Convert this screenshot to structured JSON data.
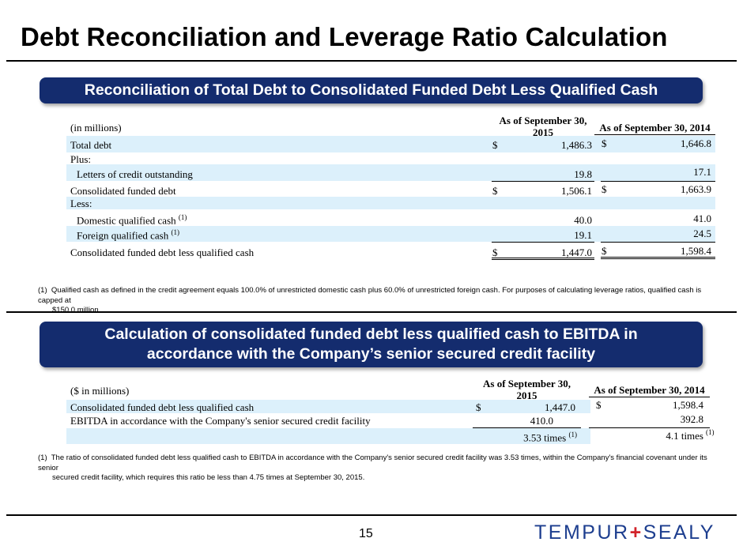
{
  "page": {
    "title": "Debt Reconciliation and Leverage Ratio Calculation",
    "page_number": "15",
    "logo_text": [
      "TEMPUR",
      "SEALY"
    ],
    "logo_plus": "+"
  },
  "section1": {
    "banner": "Reconciliation of Total Debt to Consolidated Funded Debt Less Qualified Cash",
    "units": "(in millions)",
    "col_2015": "As of September 30, 2015",
    "col_2015_l1": "As of September 30,",
    "col_2015_l2": "2015",
    "col_2014": "As of September 30, 2014",
    "rows": [
      {
        "label": "Total debt",
        "cur15": "$",
        "v15": "1,486.3",
        "cur14": "$",
        "v14": "1,646.8"
      },
      {
        "label": "Plus:"
      },
      {
        "label": "Letters of credit outstanding",
        "v15": "19.8",
        "v14": "17.1"
      },
      {
        "label": "Consolidated funded debt",
        "cur15": "$",
        "v15": "1,506.1",
        "cur14": "$",
        "v14": "1,663.9"
      },
      {
        "label": "Less:"
      },
      {
        "label": "Domestic qualified cash",
        "note": "(1)",
        "v15": "40.0",
        "v14": "41.0"
      },
      {
        "label": "Foreign qualified cash",
        "note": "(1)",
        "v15": "19.1",
        "v14": "24.5"
      },
      {
        "label": "Consolidated funded debt less qualified cash",
        "cur15": "$",
        "v15": "1,447.0",
        "cur14": "$",
        "v14": "1,598.4"
      }
    ],
    "footnote_marker": "(1)",
    "footnote_l1": "Qualified cash as defined in the credit agreement equals 100.0% of unrestricted domestic cash plus 60.0% of unrestricted foreign cash. For purposes of calculating leverage ratios, qualified cash is capped at",
    "footnote_l2": "$150.0 million."
  },
  "section2": {
    "banner_l1": "Calculation of consolidated funded debt less qualified cash to EBITDA in",
    "banner_l2": "accordance with the Company’s senior secured credit facility",
    "units": "($ in millions)",
    "col_2015_l1": "As of September 30,",
    "col_2015_l2": "2015",
    "col_2014": "As of September 30, 2014",
    "rows": [
      {
        "label": "Consolidated funded debt less qualified cash",
        "cur15": "$",
        "v15": "1,447.0",
        "cur14": "$",
        "v14": "1,598.4"
      },
      {
        "label": "EBITDA in accordance with the Company's senior secured credit facility",
        "v15": "410.0",
        "v14": "392.8"
      },
      {
        "label": "",
        "v15": "3.53 times",
        "note15": "(1)",
        "v14": "4.1 times",
        "note14": "(1)"
      }
    ],
    "footnote_marker": "(1)",
    "footnote_l1": "The ratio of consolidated funded debt less qualified cash to EBITDA in accordance with the Company's senior secured credit facility was 3.53 times, within the Company's financial covenant under its senior",
    "footnote_l2": "secured credit facility, which requires this ratio be less than 4.75 times at September 30, 2015."
  }
}
